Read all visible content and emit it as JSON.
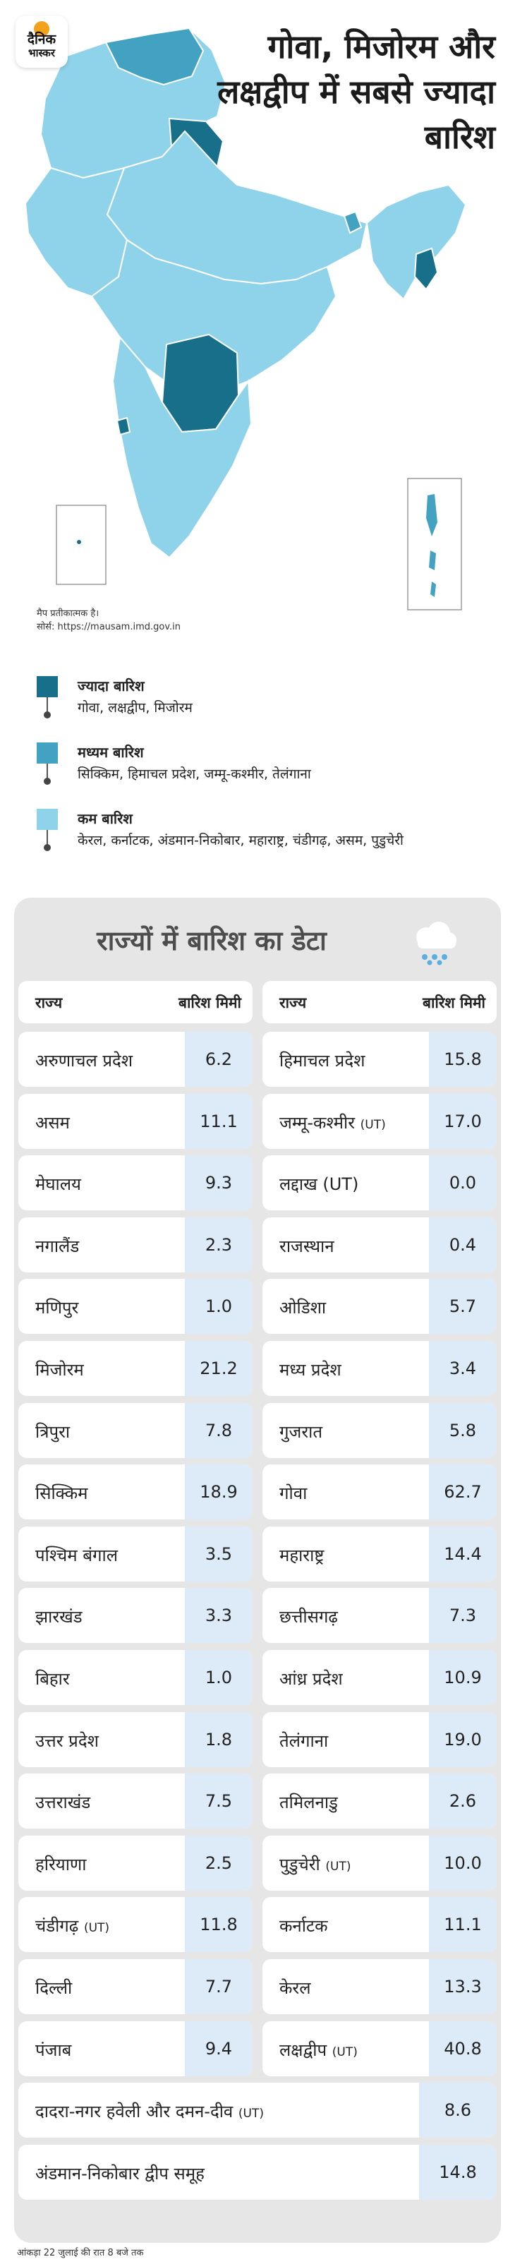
{
  "logo": {
    "line1": "दैनिक",
    "line2": "भास्कर"
  },
  "headline": "गोवा, मिजोरम और लक्षद्वीप में सबसे ज्यादा बारिश",
  "map_note": {
    "line1": "मैप प्रतीकात्मक है।",
    "line2": "सोर्स: https://mausam.imd.gov.in"
  },
  "colors": {
    "high": "#176f8a",
    "medium": "#43a2c2",
    "low": "#8ed3ea",
    "value_cell": "#dcebf7",
    "panel": "#e6e6e6"
  },
  "legend": [
    {
      "title": "ज्यादा बारिश",
      "states": "गोवा, लक्षद्वीप, मिजोरम"
    },
    {
      "title": "मध्यम बारिश",
      "states": "सिक्किम, हिमाचल प्रदेश, जम्मू-कश्मीर, तेलंगाना"
    },
    {
      "title": "कम बारिश",
      "states": "केरल, कर्नाटक, अंडमान-निकोबार, महाराष्ट्र, चंडीगढ़, असम, पुडुचेरी"
    }
  ],
  "panel_title": "राज्यों में बारिश का डेटा",
  "icon": "rain-cloud-icon",
  "chart_data": {
    "type": "table",
    "title": "राज्यों में बारिश का डेटा",
    "columns": [
      "राज्य",
      "बारिश मिमी"
    ],
    "rows_left": [
      {
        "name": "अरुणाचल प्रदेश",
        "value": "6.2"
      },
      {
        "name": "असम",
        "value": "11.1"
      },
      {
        "name": "मेघालय",
        "value": "9.3"
      },
      {
        "name": "नगालैंड",
        "value": "2.3"
      },
      {
        "name": "मणिपुर",
        "value": "1.0"
      },
      {
        "name": "मिजोरम",
        "value": "21.2"
      },
      {
        "name": "त्रिपुरा",
        "value": "7.8"
      },
      {
        "name": "सिक्किम",
        "value": "18.9"
      },
      {
        "name": "पश्चिम बंगाल",
        "value": "3.5"
      },
      {
        "name": "झारखंड",
        "value": "3.3"
      },
      {
        "name": "बिहार",
        "value": "1.0"
      },
      {
        "name": "उत्तर प्रदेश",
        "value": "1.8"
      },
      {
        "name": "उत्तराखंड",
        "value": "7.5"
      },
      {
        "name": "हरियाणा",
        "value": "2.5"
      },
      {
        "name": "चंडीगढ़",
        "ut": "(UT)",
        "value": "11.8"
      },
      {
        "name": "दिल्ली",
        "value": "7.7"
      },
      {
        "name": "पंजाब",
        "value": "9.4"
      }
    ],
    "rows_right": [
      {
        "name": "हिमाचल प्रदेश",
        "value": "15.8"
      },
      {
        "name": "जम्मू-कश्मीर",
        "ut": "(UT)",
        "value": "17.0"
      },
      {
        "name": "लद्दाख  (UT)",
        "value": "0.0"
      },
      {
        "name": "राजस्थान",
        "value": "0.4"
      },
      {
        "name": "ओडिशा",
        "value": "5.7"
      },
      {
        "name": "मध्य प्रदेश",
        "value": "3.4"
      },
      {
        "name": "गुजरात",
        "value": "5.8"
      },
      {
        "name": "गोवा",
        "value": "62.7"
      },
      {
        "name": "महाराष्ट्र",
        "value": "14.4"
      },
      {
        "name": "छत्तीसगढ़",
        "value": "7.3"
      },
      {
        "name": "आंध्र प्रदेश",
        "value": "10.9"
      },
      {
        "name": "तेलंगाना",
        "value": "19.0"
      },
      {
        "name": "तमिलनाडु",
        "value": "2.6"
      },
      {
        "name": "पुडुचेरी",
        "ut": "(UT)",
        "value": "10.0"
      },
      {
        "name": "कर्नाटक",
        "value": "11.1"
      },
      {
        "name": "केरल",
        "value": "13.3"
      },
      {
        "name": "लक्षद्वीप",
        "ut": "(UT)",
        "value": "40.8"
      }
    ],
    "rows_wide": [
      {
        "name": "दादरा-नगर हवेली और दमन-दीव",
        "ut": "(UT)",
        "value": "8.6"
      },
      {
        "name": "अंडमान-निकोबार द्वीप समूह",
        "value": "14.8"
      }
    ]
  },
  "footer": "आंकड़ा 22 जुलाई की रात 8 बजे तक"
}
